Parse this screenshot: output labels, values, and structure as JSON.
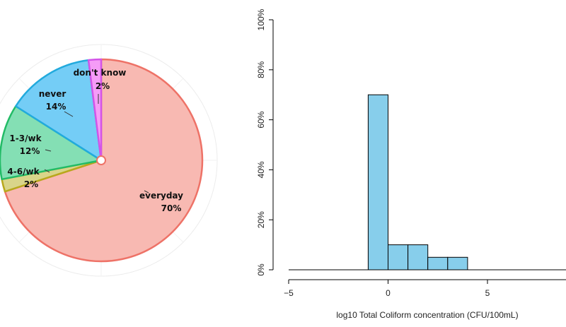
{
  "chart_data": [
    {
      "type": "pie",
      "slices": [
        {
          "label": "everyday",
          "pct_label": "70%",
          "value": 70,
          "fill": "#f8b9b2",
          "stroke": "#ee7267"
        },
        {
          "label": "4-6/wk",
          "pct_label": "2%",
          "value": 2,
          "fill": "#d9d58a",
          "stroke": "#b8a81c"
        },
        {
          "label": "1-3/wk",
          "pct_label": "12%",
          "value": 12,
          "fill": "#84dfb4",
          "stroke": "#22bb66"
        },
        {
          "label": "never",
          "pct_label": "14%",
          "value": 14,
          "fill": "#74cdf6",
          "stroke": "#22aadd"
        },
        {
          "label": "don't know",
          "pct_label": "2%",
          "value": 2,
          "fill": "#f59cf7",
          "stroke": "#d354e8"
        }
      ]
    },
    {
      "type": "bar",
      "xlabel": "log10 Total Coliform concentration (CFU/100mL)",
      "ylabel": "",
      "xlim": [
        -5,
        9
      ],
      "ylim": [
        0,
        100
      ],
      "x_ticks": [
        "−5",
        "0",
        "5"
      ],
      "y_ticks": [
        "0%",
        "20%",
        "40%",
        "60%",
        "80%",
        "100%"
      ],
      "bar_color": "#87ceeb",
      "bins": [
        {
          "x0": -1,
          "x1": 0,
          "value": 70
        },
        {
          "x0": 0,
          "x1": 1,
          "value": 10
        },
        {
          "x0": 1,
          "x1": 2,
          "value": 10
        },
        {
          "x0": 2,
          "x1": 3,
          "value": 5
        },
        {
          "x0": 3,
          "x1": 4,
          "value": 5
        }
      ]
    }
  ]
}
